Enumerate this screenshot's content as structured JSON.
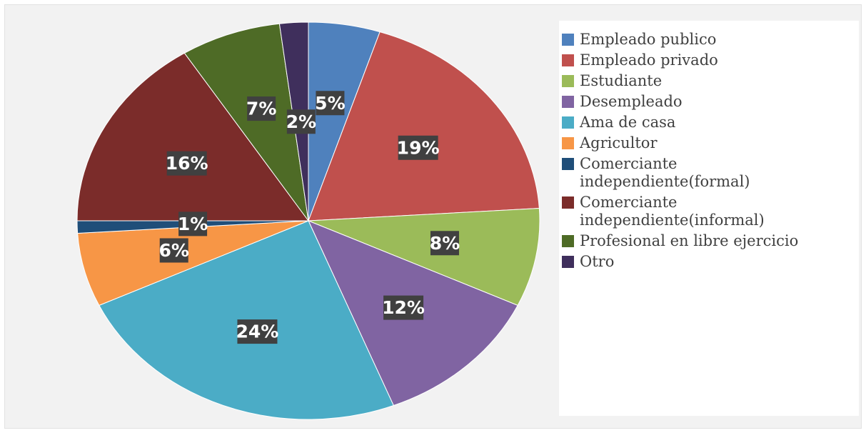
{
  "chart_data": {
    "type": "pie",
    "title": "",
    "legend_position": "right",
    "slices": [
      {
        "name": "Empleado publico",
        "value": 5,
        "label": "5%",
        "color": "#4f81bd"
      },
      {
        "name": "Empleado privado",
        "value": 19,
        "label": "19%",
        "color": "#c0504d"
      },
      {
        "name": "Estudiante",
        "value": 8,
        "label": "8%",
        "color": "#9bbb59"
      },
      {
        "name": "Desempleado",
        "value": 12,
        "label": "12%",
        "color": "#8064a2"
      },
      {
        "name": "Ama de casa",
        "value": 24,
        "label": "24%",
        "color": "#4bacc6"
      },
      {
        "name": "Agricultor",
        "value": 6,
        "label": "6%",
        "color": "#f79646"
      },
      {
        "name": "Comerciante\nindependiente(formal)",
        "value": 1,
        "label": "1%",
        "color": "#1f4e79"
      },
      {
        "name": "Comerciante\nindependiente(informal)",
        "value": 16,
        "label": "16%",
        "color": "#7b2c2a"
      },
      {
        "name": "Profesional en libre ejercicio",
        "value": 7,
        "label": "7%",
        "color": "#4e6b26"
      },
      {
        "name": "Otro",
        "value": 2,
        "label": "2%",
        "color": "#3f2f5c"
      }
    ]
  }
}
